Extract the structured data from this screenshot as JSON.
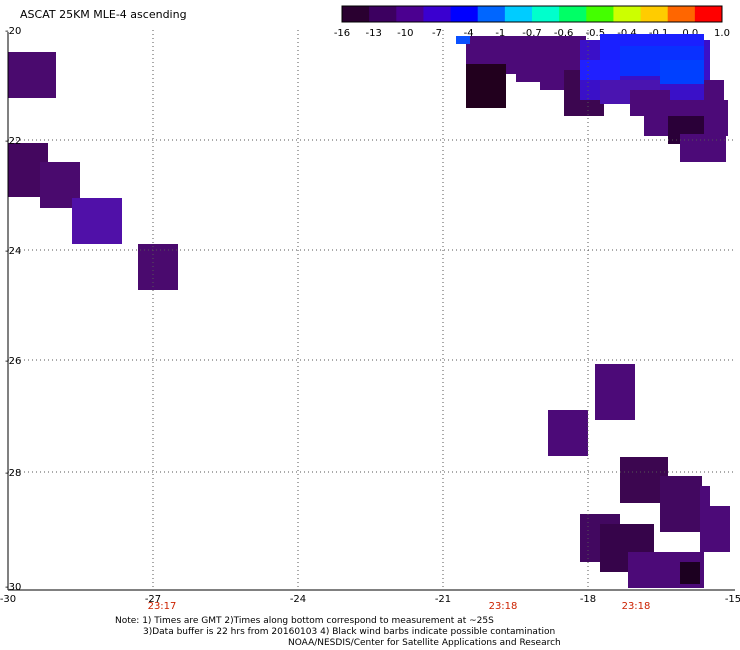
{
  "title": "ASCAT 25KM MLE-4 ascending",
  "colorbar": {
    "ticks": [
      "-16",
      "-13",
      "-10",
      "-7",
      "-4",
      "-1",
      "-0.7",
      "-0.6",
      "-0.5",
      "-0.4",
      "-0.1",
      "0.0",
      "1.0"
    ],
    "colors": [
      "#2a0030",
      "#3c0060",
      "#4b0090",
      "#3a00d0",
      "#0000ff",
      "#0066ff",
      "#00ccff",
      "#00ffcc",
      "#00ff66",
      "#44ff00",
      "#ccff00",
      "#ffcc00",
      "#ff6600",
      "#ff0000"
    ]
  },
  "axes": {
    "lon_ticks": [
      "-30",
      "-27",
      "-24",
      "-21",
      "-18",
      "-15"
    ],
    "lat_ticks": [
      "-20",
      "-22",
      "-24",
      "-26",
      "-28",
      "-30"
    ]
  },
  "time_labels": [
    "23:17",
    "23:18",
    "23:18"
  ],
  "time_color": "#cc2200",
  "notes": {
    "line1": "Note: 1) Times are GMT 2)Times along bottom correspond to measurement at ~25S",
    "line2": "3)Data buffer is 22 hrs from 20160103 4) Black wind barbs indicate possible contamination",
    "line3": "NOAA/NESDIS/Center for Satellite Applications and Research"
  }
}
